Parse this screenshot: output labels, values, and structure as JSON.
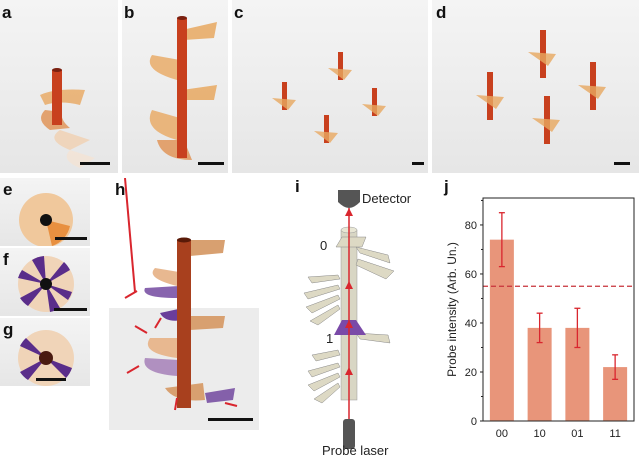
{
  "panels": {
    "a": {
      "label": "a"
    },
    "b": {
      "label": "b"
    },
    "c": {
      "label": "c"
    },
    "d": {
      "label": "d"
    },
    "e": {
      "label": "e"
    },
    "f": {
      "label": "f"
    },
    "g": {
      "label": "g"
    },
    "h": {
      "label": "h"
    },
    "i": {
      "label": "i",
      "detector": "Detector",
      "laser": "Probe laser",
      "level_top": "0",
      "level_bottom": "1"
    },
    "j": {
      "label": "j"
    }
  },
  "colors": {
    "bar": "#e8957a",
    "error": "#d9262e",
    "threshold": "#c8323a",
    "resin": "#c8401e",
    "purple": "#6a3d9a"
  },
  "chart_data": {
    "type": "bar",
    "categories": [
      "00",
      "10",
      "01",
      "11"
    ],
    "values": [
      74,
      38,
      38,
      22
    ],
    "error_low": [
      63,
      32,
      30,
      17
    ],
    "error_high": [
      85,
      44,
      46,
      27
    ],
    "threshold": 55,
    "xlabel": "",
    "ylabel": "Probe intensity (Arb. Un.)",
    "ylim": [
      0,
      91
    ],
    "yticks": [
      0,
      20,
      40,
      60,
      80
    ],
    "grid": false
  }
}
